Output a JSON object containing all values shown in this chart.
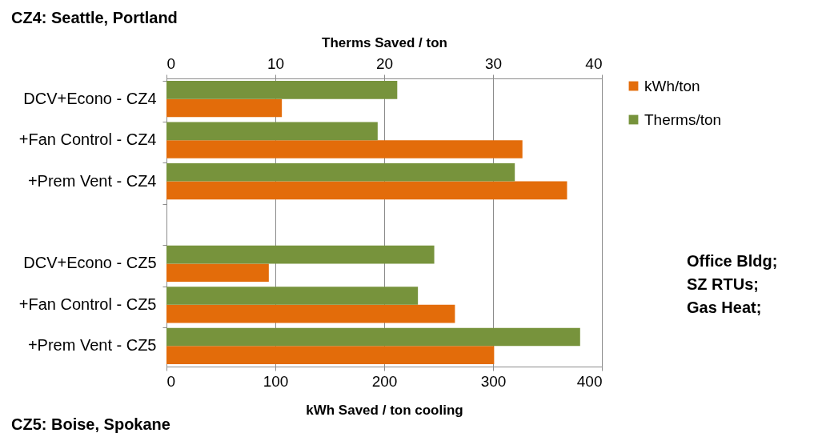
{
  "chart_data": {
    "type": "bar",
    "orientation": "horizontal",
    "categories": [
      "DCV+Econo  -  CZ4",
      "+Fan Control  -  CZ4",
      "+Prem Vent  -  CZ4",
      null,
      "DCV+Econo  -  CZ5",
      "+Fan Control  -  CZ5",
      "+Prem Vent  -  CZ5"
    ],
    "series": [
      {
        "name": "kWh/ton",
        "color": "#e36c0a",
        "values": [
          106,
          327,
          368,
          null,
          94,
          265,
          301
        ]
      },
      {
        "name": "Therms/ton",
        "color": "#77933c",
        "axis": "x2",
        "values": [
          21.2,
          19.4,
          32.0,
          null,
          24.6,
          23.1,
          38.0
        ]
      }
    ],
    "xlabel": "kWh Saved / ton cooling",
    "xlim": [
      0,
      400
    ],
    "xticks": [
      0,
      100,
      200,
      300,
      400
    ],
    "x2label": "Therms Saved / ton",
    "x2lim": [
      0,
      40
    ],
    "x2ticks": [
      0,
      10,
      20,
      30,
      40
    ],
    "grid": "x",
    "legend": "right",
    "annotations": [
      "CZ4: Seattle, Portland",
      "CZ5: Boise, Spokane",
      "Office Bldg;\nSZ RTUs;\nGas Heat;"
    ]
  }
}
